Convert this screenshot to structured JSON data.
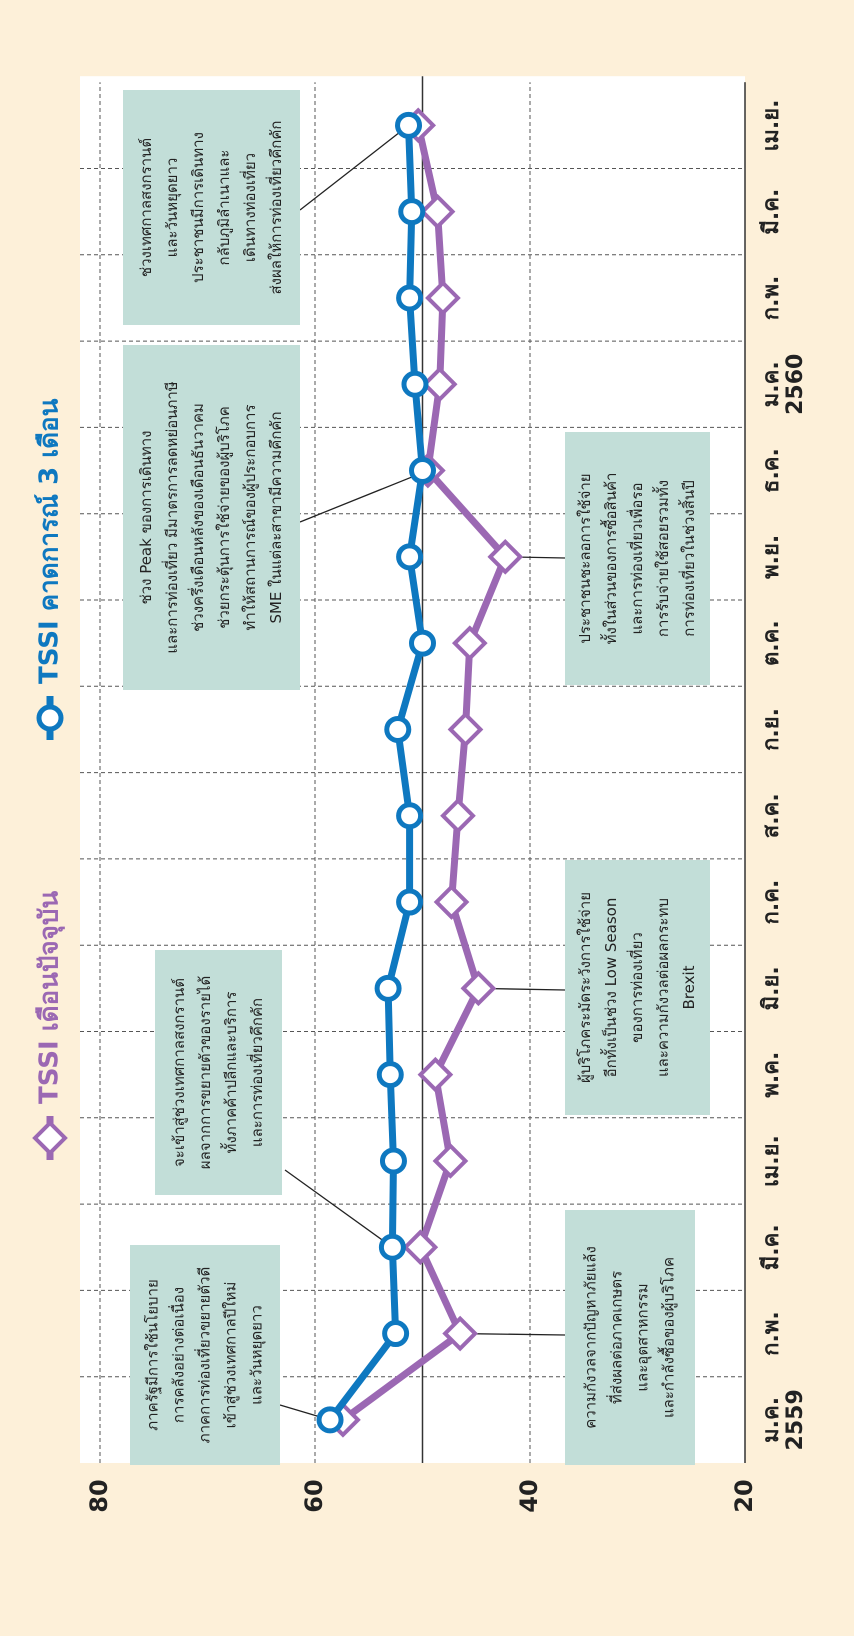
{
  "chart_data": {
    "type": "line",
    "categories": [
      "ม.ค.",
      "ก.พ.",
      "มี.ค.",
      "เม.ย.",
      "พ.ค.",
      "มิ.ย.",
      "ก.ค.",
      "ส.ค.",
      "ก.ย.",
      "ต.ค.",
      "พ.ย.",
      "ธ.ค.",
      "ม.ค.",
      "ก.พ.",
      "มี.ค.",
      "เม.ย."
    ],
    "category_years": [
      "2559",
      null,
      null,
      null,
      null,
      null,
      null,
      null,
      null,
      null,
      null,
      null,
      "2560",
      null,
      null,
      null
    ],
    "series": [
      {
        "name": "TSSI เดือนปัจจุบัน",
        "color": "#9b68b3",
        "marker": "diamond",
        "values": [
          57.4,
          46.5,
          50.2,
          47.4,
          48.8,
          44.8,
          47.3,
          46.7,
          46.0,
          45.6,
          42.3,
          49.5,
          48.4,
          48.1,
          48.6,
          50.4
        ]
      },
      {
        "name": "TSSI คาดการณ์ 3 เดือน",
        "color": "#0e78c0",
        "marker": "circle",
        "values": [
          58.6,
          52.5,
          52.8,
          52.7,
          53.0,
          53.2,
          51.2,
          51.2,
          52.3,
          50.0,
          51.2,
          50.0,
          50.7,
          51.2,
          51.0,
          51.3
        ]
      }
    ],
    "ylim": [
      20,
      80
    ],
    "yticks": [
      20,
      40,
      60,
      80
    ],
    "reference_line": 50,
    "grid": true,
    "annotations": [
      [
        "ภาครัฐมีการใช้นโยบาย",
        "การคลังอย่างต่อเนื่อง",
        "ภาคการท่องเที่ยวขยายตัวดี",
        "เข้าสู่ช่วงเทศกาลปีใหม่",
        "และวันหยุดยาว"
      ],
      [
        "จะเข้าสู่ช่วงเทศกาลสงกรานต์",
        "ผลจากการขยายตัวของรายได้",
        "ทั้งภาคค้าปลีกและบริการ",
        "และการท่องเที่ยวคึกคัก"
      ],
      [
        "ความกังวลจากปัญหาภัยแล้ง",
        "ที่ส่งผลต่อภาคเกษตร",
        "และอุตสาหกรรม",
        "และกำลังซื้อของผู้บริโภค"
      ],
      [
        "ผู้บริโภคระมัดระวังการใช้จ่าย",
        "อีกทั้งเป็นช่วง Low Season",
        "ของการท่องเที่ยว",
        "และความกังวลต่อผลกระทบ",
        "Brexit"
      ],
      [
        "ช่วง Peak ของการเดินทาง",
        "และการท่องเที่ยว มีมาตรการลดหย่อนภาษี",
        "ช่วงครึ่งเดือนหลังของเดือนธันวาคม",
        "ช่วยกระตุ้นการใช้จ่ายของผู้บริโภค",
        "ทำให้สถานการณ์ของผู้ประกอบการ",
        "SME ในแต่ละสาขามีความคึกคัก"
      ],
      [
        "ประชาชนชะลอการใช้จ่าย",
        "ทั้งในส่วนของการซื้อสินค้า",
        "และการท่องเที่ยวเพื่อรอ",
        "การรับจ่ายใช้สอยรวมทั้ง",
        "การท่องเที่ยวในช่วงสิ้นปี"
      ],
      [
        "ช่วงเทศกาลสงกรานต์",
        "และวันหยุดยาว",
        "ประชาชนมีการเดินทาง",
        "กลับภูมิลำเนาและ",
        "เดินทางท่องเที่ยว",
        "ส่งผลให้การท่องเที่ยวคึกคัก"
      ]
    ]
  }
}
